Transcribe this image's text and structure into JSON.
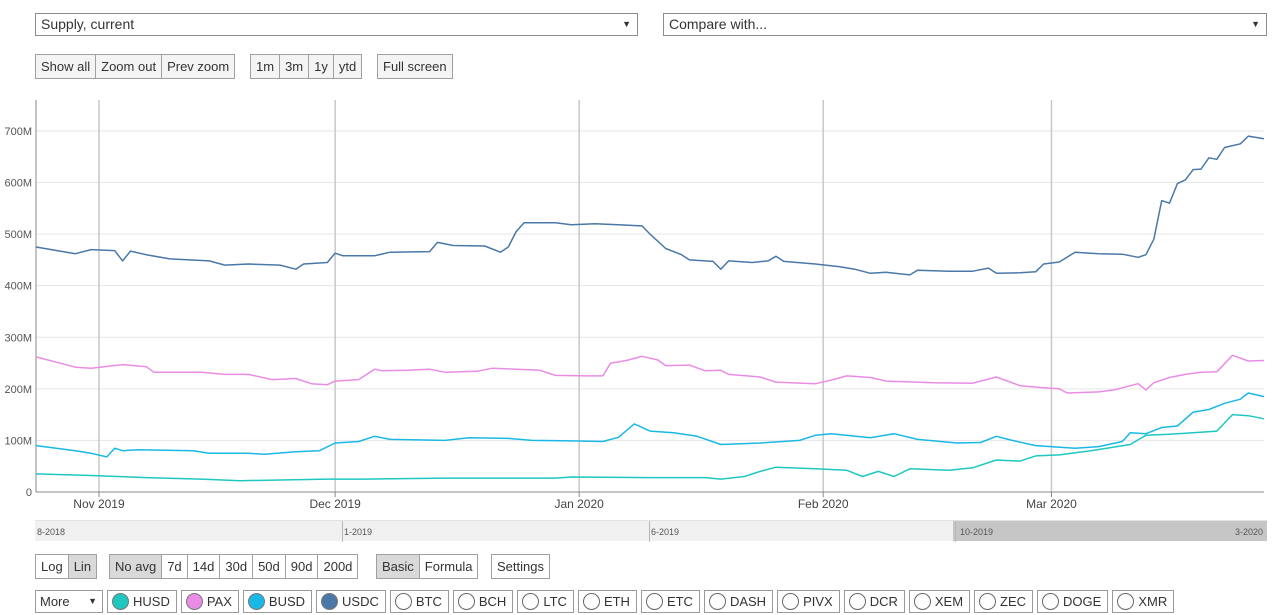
{
  "metric_select": {
    "value": "Supply, current",
    "arrow": "▼"
  },
  "compare_select": {
    "value": "Compare with...",
    "arrow": "▼"
  },
  "zoom_buttons": [
    "Show all",
    "Zoom out",
    "Prev zoom"
  ],
  "range_buttons": [
    "1m",
    "3m",
    "1y",
    "ytd"
  ],
  "fullscreen_button": "Full screen",
  "scale_buttons": [
    "Log",
    "Lin"
  ],
  "avg_buttons": [
    "No avg",
    "7d",
    "14d",
    "30d",
    "50d",
    "90d",
    "200d"
  ],
  "mode_buttons": [
    "Basic",
    "Formula"
  ],
  "settings_button": "Settings",
  "more_select": {
    "value": "More",
    "arrow": "▼"
  },
  "coins": [
    {
      "label": "HUSD",
      "color": "#1fc7c0",
      "selected": true
    },
    {
      "label": "PAX",
      "color": "#e98ce6",
      "selected": true
    },
    {
      "label": "BUSD",
      "color": "#1ab8e6",
      "selected": true
    },
    {
      "label": "USDC",
      "color": "#4a78a8",
      "selected": true
    },
    {
      "label": "BTC",
      "color": "",
      "selected": false
    },
    {
      "label": "BCH",
      "color": "",
      "selected": false
    },
    {
      "label": "LTC",
      "color": "",
      "selected": false
    },
    {
      "label": "ETH",
      "color": "",
      "selected": false
    },
    {
      "label": "ETC",
      "color": "",
      "selected": false
    },
    {
      "label": "DASH",
      "color": "",
      "selected": false
    },
    {
      "label": "PIVX",
      "color": "",
      "selected": false
    },
    {
      "label": "DCR",
      "color": "",
      "selected": false
    },
    {
      "label": "XEM",
      "color": "",
      "selected": false
    },
    {
      "label": "ZEC",
      "color": "",
      "selected": false
    },
    {
      "label": "DOGE",
      "color": "",
      "selected": false
    },
    {
      "label": "XMR",
      "color": "",
      "selected": false
    }
  ],
  "navigator": {
    "labels": [
      "8-2018",
      "1-2019",
      "6-2019",
      "10-2019",
      "3-2020"
    ],
    "selection_start": "10-2019",
    "selection_end": "3-2020"
  },
  "chart_data": {
    "type": "line",
    "title": "",
    "xlabel": "",
    "ylabel": "",
    "x_range": [
      "2019-10-24",
      "2020-03-28"
    ],
    "ylim": [
      0,
      760000000
    ],
    "y_ticks": [
      0,
      100000000,
      200000000,
      300000000,
      400000000,
      500000000,
      600000000,
      700000000
    ],
    "y_tick_labels": [
      "0",
      "100M",
      "200M",
      "300M",
      "400M",
      "500M",
      "600M",
      "700M"
    ],
    "x_ticks": [
      "2019-11-01",
      "2019-12-01",
      "2020-01-01",
      "2020-02-01",
      "2020-03-01"
    ],
    "x_tick_labels": [
      "Nov 2019",
      "Dec 2019",
      "Jan 2020",
      "Feb 2020",
      "Mar 2020"
    ],
    "grid": {
      "horizontal": true,
      "vertical": true
    },
    "legend": "none",
    "series": [
      {
        "name": "USDC",
        "color": "#4a78a8",
        "points": [
          [
            "2019-10-24",
            475
          ],
          [
            "2019-10-29",
            462
          ],
          [
            "2019-10-31",
            470
          ],
          [
            "2019-11-03",
            468
          ],
          [
            "2019-11-04",
            448
          ],
          [
            "2019-11-05",
            467
          ],
          [
            "2019-11-07",
            460
          ],
          [
            "2019-11-10",
            452
          ],
          [
            "2019-11-15",
            448
          ],
          [
            "2019-11-17",
            440
          ],
          [
            "2019-11-20",
            442
          ],
          [
            "2019-11-24",
            440
          ],
          [
            "2019-11-26",
            432
          ],
          [
            "2019-11-27",
            442
          ],
          [
            "2019-11-30",
            445
          ],
          [
            "2019-12-01",
            463
          ],
          [
            "2019-12-02",
            458
          ],
          [
            "2019-12-06",
            458
          ],
          [
            "2019-12-08",
            465
          ],
          [
            "2019-12-13",
            466
          ],
          [
            "2019-12-14",
            484
          ],
          [
            "2019-12-16",
            478
          ],
          [
            "2019-12-20",
            477
          ],
          [
            "2019-12-22",
            465
          ],
          [
            "2019-12-23",
            475
          ],
          [
            "2019-12-24",
            505
          ],
          [
            "2019-12-25",
            522
          ],
          [
            "2019-12-29",
            522
          ],
          [
            "2019-12-31",
            518
          ],
          [
            "2020-01-03",
            520
          ],
          [
            "2020-01-06",
            518
          ],
          [
            "2020-01-09",
            516
          ],
          [
            "2020-01-10",
            500
          ],
          [
            "2020-01-12",
            472
          ],
          [
            "2020-01-14",
            460
          ],
          [
            "2020-01-15",
            450
          ],
          [
            "2020-01-18",
            447
          ],
          [
            "2020-01-19",
            432
          ],
          [
            "2020-01-20",
            448
          ],
          [
            "2020-01-23",
            445
          ],
          [
            "2020-01-25",
            448
          ],
          [
            "2020-01-26",
            457
          ],
          [
            "2020-01-27",
            447
          ],
          [
            "2020-01-31",
            442
          ],
          [
            "2020-02-03",
            437
          ],
          [
            "2020-02-05",
            432
          ],
          [
            "2020-02-07",
            424
          ],
          [
            "2020-02-09",
            426
          ],
          [
            "2020-02-12",
            421
          ],
          [
            "2020-02-13",
            430
          ],
          [
            "2020-02-17",
            428
          ],
          [
            "2020-02-20",
            428
          ],
          [
            "2020-02-22",
            434
          ],
          [
            "2020-02-23",
            424
          ],
          [
            "2020-02-26",
            425
          ],
          [
            "2020-02-28",
            427
          ],
          [
            "2020-02-29",
            442
          ],
          [
            "2020-03-02",
            446
          ],
          [
            "2020-03-04",
            465
          ],
          [
            "2020-03-07",
            462
          ],
          [
            "2020-03-10",
            461
          ],
          [
            "2020-03-12",
            455
          ],
          [
            "2020-03-13",
            460
          ],
          [
            "2020-03-14",
            490
          ],
          [
            "2020-03-15",
            565
          ],
          [
            "2020-03-16",
            560
          ],
          [
            "2020-03-17",
            598
          ],
          [
            "2020-03-18",
            605
          ],
          [
            "2020-03-19",
            625
          ],
          [
            "2020-03-20",
            626
          ],
          [
            "2020-03-21",
            648
          ],
          [
            "2020-03-22",
            645
          ],
          [
            "2020-03-23",
            668
          ],
          [
            "2020-03-25",
            675
          ],
          [
            "2020-03-26",
            690
          ],
          [
            "2020-03-28",
            685
          ]
        ]
      },
      {
        "name": "PAX",
        "color": "#e98ce6",
        "points": [
          [
            "2019-10-24",
            262
          ],
          [
            "2019-10-29",
            242
          ],
          [
            "2019-10-31",
            240
          ],
          [
            "2019-11-04",
            247
          ],
          [
            "2019-11-07",
            243
          ],
          [
            "2019-11-08",
            232
          ],
          [
            "2019-11-14",
            232
          ],
          [
            "2019-11-17",
            228
          ],
          [
            "2019-11-20",
            228
          ],
          [
            "2019-11-23",
            218
          ],
          [
            "2019-11-26",
            220
          ],
          [
            "2019-11-28",
            210
          ],
          [
            "2019-11-30",
            208
          ],
          [
            "2019-12-01",
            215
          ],
          [
            "2019-12-04",
            218
          ],
          [
            "2019-12-06",
            238
          ],
          [
            "2019-12-07",
            235
          ],
          [
            "2019-12-10",
            236
          ],
          [
            "2019-12-13",
            238
          ],
          [
            "2019-12-15",
            232
          ],
          [
            "2019-12-19",
            234
          ],
          [
            "2019-12-21",
            240
          ],
          [
            "2019-12-24",
            238
          ],
          [
            "2019-12-27",
            236
          ],
          [
            "2019-12-29",
            226
          ],
          [
            "2020-01-02",
            225
          ],
          [
            "2020-01-04",
            225
          ],
          [
            "2020-01-05",
            250
          ],
          [
            "2020-01-07",
            255
          ],
          [
            "2020-01-09",
            263
          ],
          [
            "2020-01-11",
            256
          ],
          [
            "2020-01-12",
            245
          ],
          [
            "2020-01-15",
            246
          ],
          [
            "2020-01-17",
            235
          ],
          [
            "2020-01-19",
            236
          ],
          [
            "2020-01-20",
            228
          ],
          [
            "2020-01-24",
            223
          ],
          [
            "2020-01-26",
            213
          ],
          [
            "2020-01-31",
            210
          ],
          [
            "2020-02-02",
            217
          ],
          [
            "2020-02-04",
            225
          ],
          [
            "2020-02-07",
            222
          ],
          [
            "2020-02-09",
            215
          ],
          [
            "2020-02-11",
            214
          ],
          [
            "2020-02-15",
            212
          ],
          [
            "2020-02-20",
            211
          ],
          [
            "2020-02-23",
            223
          ],
          [
            "2020-02-26",
            206
          ],
          [
            "2020-02-29",
            202
          ],
          [
            "2020-03-02",
            200
          ],
          [
            "2020-03-03",
            192
          ],
          [
            "2020-03-07",
            194
          ],
          [
            "2020-03-09",
            198
          ],
          [
            "2020-03-11",
            206
          ],
          [
            "2020-03-12",
            210
          ],
          [
            "2020-03-13",
            198
          ],
          [
            "2020-03-14",
            212
          ],
          [
            "2020-03-16",
            222
          ],
          [
            "2020-03-18",
            228
          ],
          [
            "2020-03-20",
            232
          ],
          [
            "2020-03-22",
            233
          ],
          [
            "2020-03-24",
            265
          ],
          [
            "2020-03-26",
            254
          ],
          [
            "2020-03-28",
            255
          ]
        ]
      },
      {
        "name": "BUSD",
        "color": "#1ab8e6",
        "points": [
          [
            "2019-10-24",
            90
          ],
          [
            "2019-10-29",
            80
          ],
          [
            "2019-10-31",
            75
          ],
          [
            "2019-11-02",
            68
          ],
          [
            "2019-11-03",
            85
          ],
          [
            "2019-11-04",
            80
          ],
          [
            "2019-11-06",
            82
          ],
          [
            "2019-11-13",
            80
          ],
          [
            "2019-11-15",
            75
          ],
          [
            "2019-11-20",
            75
          ],
          [
            "2019-11-22",
            73
          ],
          [
            "2019-11-26",
            78
          ],
          [
            "2019-11-29",
            80
          ],
          [
            "2019-12-01",
            95
          ],
          [
            "2019-12-04",
            98
          ],
          [
            "2019-12-06",
            108
          ],
          [
            "2019-12-08",
            102
          ],
          [
            "2019-12-15",
            100
          ],
          [
            "2019-12-18",
            105
          ],
          [
            "2019-12-23",
            104
          ],
          [
            "2019-12-26",
            100
          ],
          [
            "2019-12-31",
            99
          ],
          [
            "2020-01-04",
            98
          ],
          [
            "2020-01-06",
            106
          ],
          [
            "2020-01-08",
            132
          ],
          [
            "2020-01-10",
            118
          ],
          [
            "2020-01-13",
            115
          ],
          [
            "2020-01-16",
            108
          ],
          [
            "2020-01-19",
            92
          ],
          [
            "2020-01-24",
            95
          ],
          [
            "2020-01-29",
            100
          ],
          [
            "2020-01-31",
            110
          ],
          [
            "2020-02-02",
            113
          ],
          [
            "2020-02-07",
            105
          ],
          [
            "2020-02-10",
            113
          ],
          [
            "2020-02-13",
            102
          ],
          [
            "2020-02-18",
            95
          ],
          [
            "2020-02-21",
            96
          ],
          [
            "2020-02-23",
            108
          ],
          [
            "2020-02-25",
            100
          ],
          [
            "2020-02-28",
            90
          ],
          [
            "2020-03-04",
            85
          ],
          [
            "2020-03-07",
            88
          ],
          [
            "2020-03-10",
            98
          ],
          [
            "2020-03-11",
            115
          ],
          [
            "2020-03-13",
            113
          ],
          [
            "2020-03-15",
            125
          ],
          [
            "2020-03-17",
            128
          ],
          [
            "2020-03-19",
            155
          ],
          [
            "2020-03-21",
            160
          ],
          [
            "2020-03-23",
            172
          ],
          [
            "2020-03-25",
            180
          ],
          [
            "2020-03-26",
            192
          ],
          [
            "2020-03-28",
            185
          ]
        ]
      },
      {
        "name": "HUSD",
        "color": "#1fc7c0",
        "points": [
          [
            "2019-10-24",
            35
          ],
          [
            "2019-10-31",
            32
          ],
          [
            "2019-11-07",
            28
          ],
          [
            "2019-11-14",
            25
          ],
          [
            "2019-11-19",
            22
          ],
          [
            "2019-11-30",
            25
          ],
          [
            "2019-12-05",
            25
          ],
          [
            "2019-12-15",
            27
          ],
          [
            "2019-12-29",
            27
          ],
          [
            "2019-12-31",
            29
          ],
          [
            "2020-01-10",
            28
          ],
          [
            "2020-01-17",
            28
          ],
          [
            "2020-01-19",
            25
          ],
          [
            "2020-01-22",
            30
          ],
          [
            "2020-01-24",
            40
          ],
          [
            "2020-01-26",
            48
          ],
          [
            "2020-01-31",
            45
          ],
          [
            "2020-02-04",
            42
          ],
          [
            "2020-02-06",
            30
          ],
          [
            "2020-02-08",
            40
          ],
          [
            "2020-02-10",
            30
          ],
          [
            "2020-02-12",
            45
          ],
          [
            "2020-02-17",
            42
          ],
          [
            "2020-02-20",
            47
          ],
          [
            "2020-02-23",
            62
          ],
          [
            "2020-02-26",
            60
          ],
          [
            "2020-02-28",
            70
          ],
          [
            "2020-03-02",
            72
          ],
          [
            "2020-03-06",
            80
          ],
          [
            "2020-03-08",
            85
          ],
          [
            "2020-03-11",
            92
          ],
          [
            "2020-03-13",
            110
          ],
          [
            "2020-03-16",
            112
          ],
          [
            "2020-03-19",
            115
          ],
          [
            "2020-03-22",
            118
          ],
          [
            "2020-03-24",
            150
          ],
          [
            "2020-03-26",
            148
          ],
          [
            "2020-03-28",
            142
          ]
        ]
      }
    ],
    "y_unit_multiplier": 1000000
  }
}
